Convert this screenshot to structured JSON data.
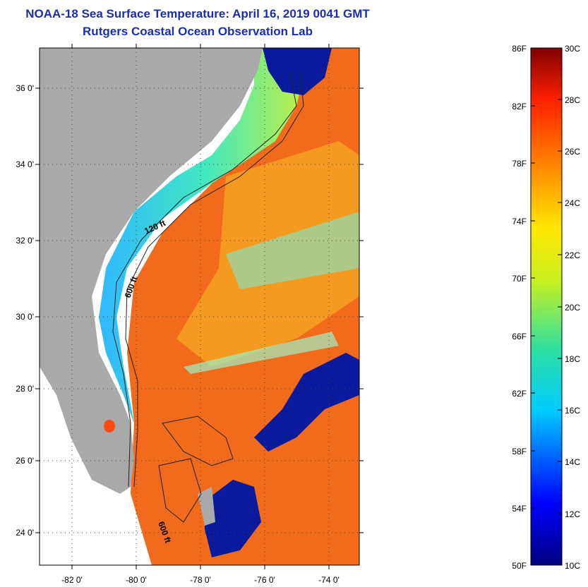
{
  "title": {
    "line1": "NOAA-18 Sea Surface Temperature:  April 16, 2019 0041 GMT",
    "line2": "Rutgers Coastal Ocean Observation Lab"
  },
  "map": {
    "lat_labels": [
      "36 0'",
      "34 0'",
      "32 0'",
      "30 0'",
      "28 0'",
      "26 0'",
      "24 0'"
    ],
    "lon_labels": [
      "-82 0'",
      "-80 0'",
      "-78 0'",
      "-76 0'",
      "-74 0'"
    ],
    "contour_labels": [
      "120 ft",
      "600 ft",
      "600 ft"
    ],
    "colors": {
      "land": "#a9a9a9",
      "warm": "#f26a1b",
      "cold": "#0a1a9c",
      "shelf": "#3fe0c0"
    }
  },
  "colorbar": {
    "fahrenheit": [
      "86F",
      "82F",
      "78F",
      "74F",
      "70F",
      "66F",
      "62F",
      "58F",
      "54F",
      "50F"
    ],
    "celsius": [
      "30C",
      "28C",
      "26C",
      "24C",
      "22C",
      "20C",
      "18C",
      "16C",
      "14C",
      "12C",
      "10C"
    ]
  }
}
